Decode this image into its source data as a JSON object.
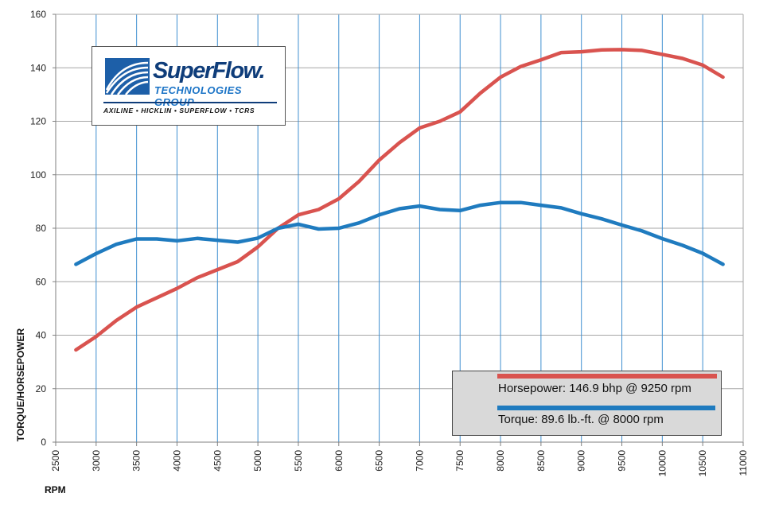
{
  "chart_data": {
    "type": "line",
    "xlabel": "RPM",
    "ylabel": "TORQUE/HORSEPOWER",
    "xlim": [
      2500,
      11000
    ],
    "ylim": [
      0,
      160
    ],
    "x_ticks": [
      2500,
      3000,
      3500,
      4000,
      4500,
      5000,
      5500,
      6000,
      6500,
      7000,
      7500,
      8000,
      8500,
      9000,
      9500,
      10000,
      10500,
      11000
    ],
    "y_ticks": [
      0,
      20,
      40,
      60,
      80,
      100,
      120,
      140,
      160
    ],
    "grid": "vertical and horizontal",
    "legend_position": "bottom-right",
    "x": [
      2750,
      3000,
      3250,
      3500,
      3750,
      4000,
      4250,
      4500,
      4750,
      5000,
      5250,
      5500,
      5750,
      6000,
      6250,
      6500,
      6750,
      7000,
      7250,
      7500,
      7750,
      8000,
      8250,
      8500,
      8750,
      9000,
      9250,
      9500,
      9750,
      10000,
      10250,
      10500,
      10750
    ],
    "series": [
      {
        "name": "Horsepower: 146.9 bhp @ 9250 rpm",
        "color": "#d9534f",
        "values": [
          34.5,
          39.5,
          45.5,
          50.5,
          54,
          57.5,
          61.5,
          64.5,
          67.5,
          73,
          80,
          85,
          87,
          91,
          97.5,
          105.5,
          112,
          117.5,
          120,
          123.5,
          130.5,
          136.5,
          140.5,
          143,
          145.7,
          146,
          146.7,
          146.8,
          146.5,
          145,
          143.5,
          141,
          136.5
        ]
      },
      {
        "name": "Torque: 89.6 lb.-ft. @ 8000 rpm",
        "color": "#1f7bbf",
        "values": [
          66.5,
          70.5,
          74,
          76,
          76,
          75.3,
          76.2,
          75.5,
          74.8,
          76.3,
          80,
          81.5,
          79.7,
          80,
          82,
          85,
          87.3,
          88.3,
          87,
          86.6,
          88.6,
          89.6,
          89.6,
          88.6,
          87.6,
          85.4,
          83.5,
          81.2,
          79,
          76.1,
          73.6,
          70.6,
          66.5
        ]
      }
    ]
  },
  "logo": {
    "brand": "SuperFlow.",
    "subtitle": "TECHNOLOGIES GROUP",
    "brands": "AXILINE • HICKLIN • SUPERFLOW • TCRS"
  }
}
